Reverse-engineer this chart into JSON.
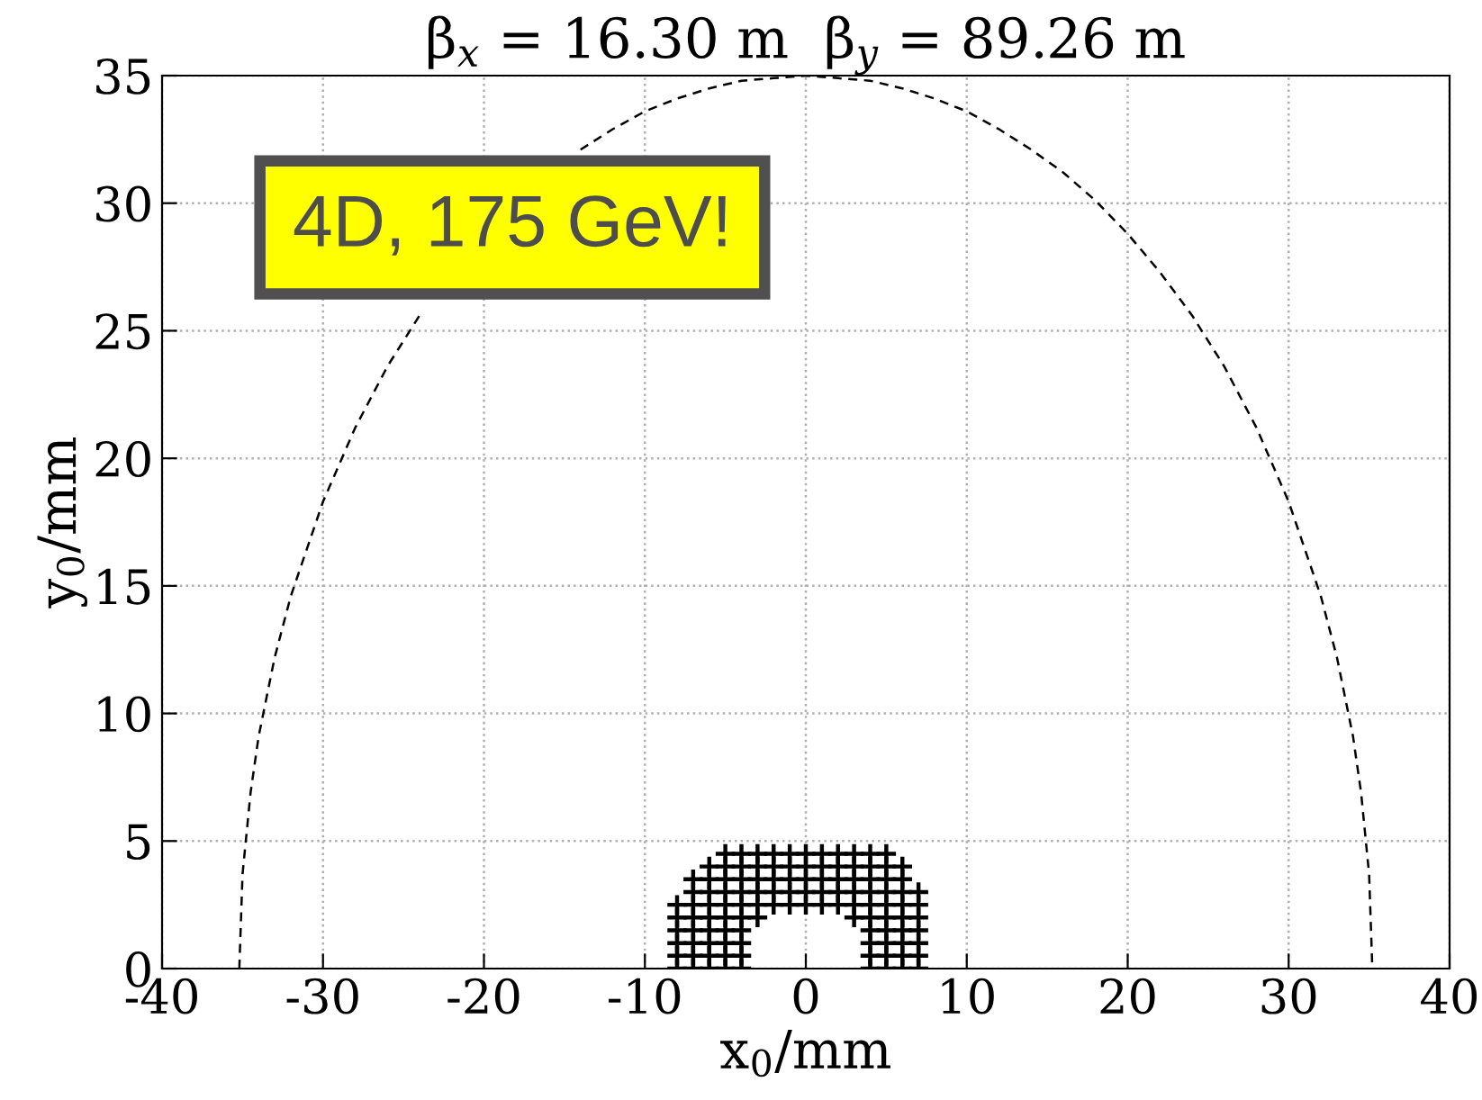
{
  "chart_data": {
    "type": "line",
    "title": "β$_{x}$ = 16.30 m  β$_{y}$ = 89.26 m",
    "xlabel": "x$_{0}$/mm",
    "ylabel": "y$_{0}$/mm",
    "annotations": [
      "4D, 175 GeV!"
    ],
    "xlim": [
      -40,
      40
    ],
    "ylim": [
      0,
      35
    ],
    "xticks": [
      -40,
      -30,
      -20,
      -10,
      0,
      10,
      20,
      30,
      40
    ],
    "yticks": [
      0,
      5,
      10,
      15,
      20,
      25,
      30,
      35
    ],
    "grid": true,
    "series": [
      {
        "color": "#000000",
        "line_style": "dashed",
        "marker": "none",
        "x": [
          -35.2,
          -35,
          -34.5,
          -34,
          -33,
          -32,
          -30,
          -28,
          -26,
          -24,
          -22,
          -20,
          -18,
          -16,
          -14,
          -12,
          -10,
          -8,
          -6,
          -4,
          -2,
          0,
          2,
          4,
          6,
          8,
          10,
          12,
          14,
          16,
          18,
          20,
          22,
          24,
          26,
          28,
          30,
          32,
          33,
          34,
          34.5,
          35,
          35.2
        ],
        "values": [
          0,
          3.7,
          6.9,
          9.1,
          12.2,
          14.6,
          18.3,
          21.2,
          23.6,
          25.6,
          null,
          null,
          null,
          null,
          32.1,
          32.9,
          33.6,
          34.1,
          34.5,
          34.8,
          34.9,
          35,
          34.9,
          34.8,
          34.5,
          34.1,
          33.6,
          32.9,
          32.1,
          31.2,
          30.1,
          28.8,
          27.3,
          25.6,
          23.6,
          21.2,
          18.3,
          14.6,
          12.2,
          9.1,
          6.9,
          3.7,
          0
        ]
      },
      {
        "type": "scatter",
        "color": "#000000",
        "marker": "cross",
        "x": [
          -8,
          -8,
          -8,
          -8,
          -8,
          -8,
          -7,
          -7,
          -7,
          -7,
          -7,
          -7,
          -7,
          -7,
          -6,
          -6,
          -6,
          -6,
          -6,
          -6,
          -6,
          -6,
          -6,
          -5,
          -5,
          -5,
          -5,
          -5,
          -5,
          -5,
          -5,
          -5,
          -5,
          -4,
          -4,
          -4,
          -4,
          -4,
          -4,
          -4,
          -4,
          -4,
          -4,
          -3,
          -3,
          -3,
          -3,
          -3,
          -3,
          -2,
          -2,
          -2,
          -2,
          -2,
          -1,
          -1,
          -1,
          -1,
          -1,
          0,
          0,
          0,
          0,
          0,
          1,
          1,
          1,
          1,
          1,
          2,
          2,
          2,
          2,
          2,
          3,
          3,
          3,
          3,
          3,
          3,
          4,
          4,
          4,
          4,
          4,
          4,
          4,
          4,
          4,
          4,
          5,
          5,
          5,
          5,
          5,
          5,
          5,
          5,
          5,
          5,
          6,
          6,
          6,
          6,
          6,
          6,
          6,
          6,
          6,
          7,
          7,
          7,
          7,
          7,
          7,
          7
        ],
        "values": [
          0,
          0.5,
          1,
          1.5,
          2,
          2.5,
          0,
          0.5,
          1,
          1.5,
          2,
          2.5,
          3,
          3.5,
          0,
          0.5,
          1,
          1.5,
          2,
          2.5,
          3,
          3.5,
          4,
          0,
          0.5,
          1,
          1.5,
          2,
          2.5,
          3,
          3.5,
          4,
          4.5,
          0,
          0.5,
          1,
          1.5,
          2,
          2.5,
          3,
          3.5,
          4,
          4.5,
          2,
          2.5,
          3,
          3.5,
          4,
          4.5,
          2.5,
          3,
          3.5,
          4,
          4.5,
          2.5,
          3,
          3.5,
          4,
          4.5,
          2.5,
          3,
          3.5,
          4,
          4.5,
          2.5,
          3,
          3.5,
          4,
          4.5,
          2.5,
          3,
          3.5,
          4,
          4.5,
          2,
          2.5,
          3,
          3.5,
          4,
          4.5,
          0,
          0.5,
          1,
          1.5,
          2,
          2.5,
          3,
          3.5,
          4,
          4.5,
          0,
          0.5,
          1,
          1.5,
          2,
          2.5,
          3,
          3.5,
          4,
          4.5,
          0,
          0.5,
          1,
          1.5,
          2,
          2.5,
          3,
          3.5,
          4,
          0,
          0.5,
          1,
          1.5,
          2,
          2.5,
          3
        ]
      }
    ]
  }
}
